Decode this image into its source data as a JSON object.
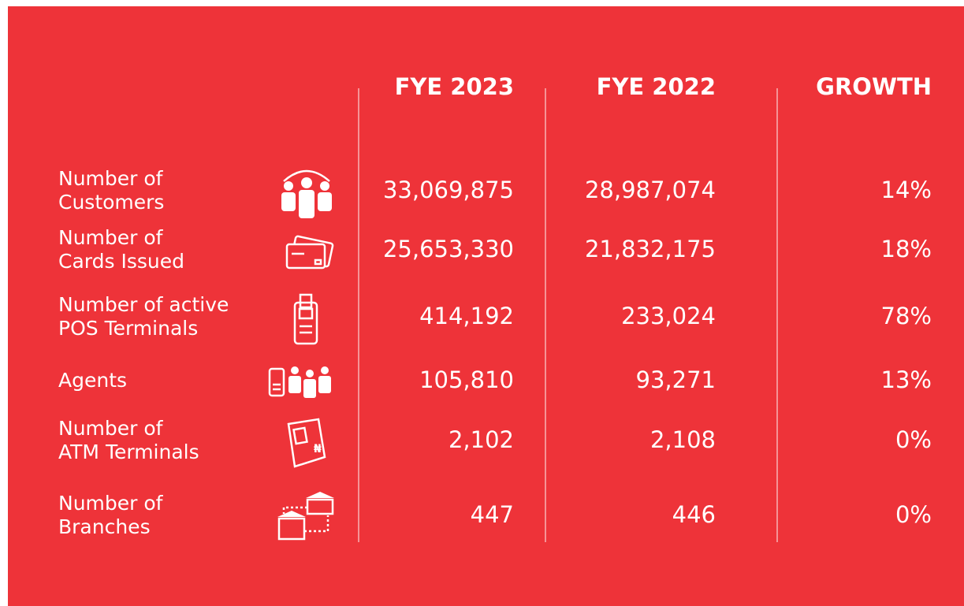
{
  "table": {
    "columns": [
      "FYE 2023",
      "FYE 2022",
      "GROWTH"
    ],
    "rows": [
      {
        "label": [
          "Number of",
          "Customers"
        ],
        "cells": [
          "33,069,875",
          "28,987,074",
          "14%"
        ]
      },
      {
        "label": [
          "Number of",
          "Cards Issued"
        ],
        "cells": [
          "25,653,330",
          "21,832,175",
          "18%"
        ]
      },
      {
        "label": [
          "Number of active",
          "POS Terminals"
        ],
        "cells": [
          "414,192",
          "233,024",
          "78%"
        ]
      },
      {
        "label": [
          "Agents"
        ],
        "cells": [
          "105,810",
          "93,271",
          "13%"
        ]
      },
      {
        "label": [
          "Number of",
          "ATM Terminals"
        ],
        "cells": [
          "2,102",
          "2,108",
          "0%"
        ]
      },
      {
        "label": [
          "Number of",
          "Branches"
        ],
        "cells": [
          "447",
          "446",
          "0%"
        ]
      }
    ]
  }
}
